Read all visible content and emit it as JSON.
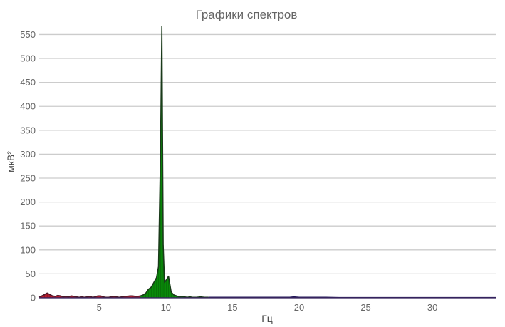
{
  "chart_data": {
    "type": "area",
    "title": "Графики спектров",
    "xlabel": "Гц",
    "ylabel": "мкВ²",
    "xlim": [
      0.5,
      34.8
    ],
    "ylim": [
      -3,
      570
    ],
    "x_ticks": [
      5,
      10,
      15,
      20,
      25,
      30
    ],
    "y_ticks": [
      0,
      50,
      100,
      150,
      200,
      250,
      300,
      350,
      400,
      450,
      500,
      550
    ],
    "grid": true,
    "series": [
      {
        "color": "#b31b2e",
        "outline": "#4b1a2a",
        "x": [
          0.5,
          0.7,
          0.9,
          1.1,
          1.3,
          1.5,
          1.7,
          1.9,
          2.1,
          2.3,
          2.5,
          2.7,
          2.9,
          3.1,
          3.3,
          3.5,
          3.7,
          3.9,
          4.1,
          4.3,
          4.5,
          4.7,
          4.9,
          5.1,
          5.3,
          5.5,
          5.7,
          5.9,
          6.1,
          6.3,
          6.5,
          6.7,
          6.9,
          7.1,
          7.3,
          7.5,
          7.7,
          7.9,
          8.1
        ],
        "y": [
          2,
          4,
          7,
          10,
          7,
          4,
          3,
          5,
          4,
          2,
          3,
          2,
          4,
          3,
          2,
          1,
          2,
          1,
          2,
          3,
          1,
          2,
          4,
          4,
          2,
          1,
          1,
          2,
          3,
          2,
          1,
          2,
          3,
          3,
          4,
          4,
          3,
          3,
          4
        ]
      },
      {
        "color": "#0a8a0a",
        "outline": "#1a3a1a",
        "x": [
          8.1,
          8.3,
          8.5,
          8.7,
          8.9,
          9.1,
          9.3,
          9.45,
          9.6,
          9.7,
          9.8,
          9.9,
          10.05,
          10.2,
          10.4,
          10.6,
          10.8,
          11.0,
          11.2,
          11.4,
          11.6,
          11.8,
          12.0,
          12.3,
          12.6,
          12.9,
          13.2
        ],
        "y": [
          4,
          6,
          10,
          18,
          22,
          32,
          42,
          65,
          300,
          567,
          110,
          32,
          38,
          45,
          12,
          6,
          4,
          2,
          3,
          2,
          1,
          2,
          1,
          1,
          2,
          1,
          1
        ]
      },
      {
        "color": "#1a1ab0",
        "outline": "#231858",
        "x": [
          13.2,
          14.0,
          15.0,
          16.0,
          17.0,
          18.0,
          18.6,
          19.0,
          19.3,
          19.6,
          20.0,
          20.5,
          21.0,
          22.0,
          23.0,
          24.0,
          25.0,
          26.0,
          27.0,
          28.0,
          29.0,
          30.0,
          31.0,
          32.0,
          33.0,
          34.0,
          34.8
        ],
        "y": [
          1,
          1,
          1,
          1,
          1,
          1,
          1,
          1,
          1,
          2,
          1,
          1,
          1,
          1,
          0.5,
          0.5,
          0.5,
          0.5,
          0.5,
          0.5,
          0.5,
          0.5,
          0.5,
          0.5,
          0.5,
          0.5,
          0.5
        ]
      }
    ]
  }
}
